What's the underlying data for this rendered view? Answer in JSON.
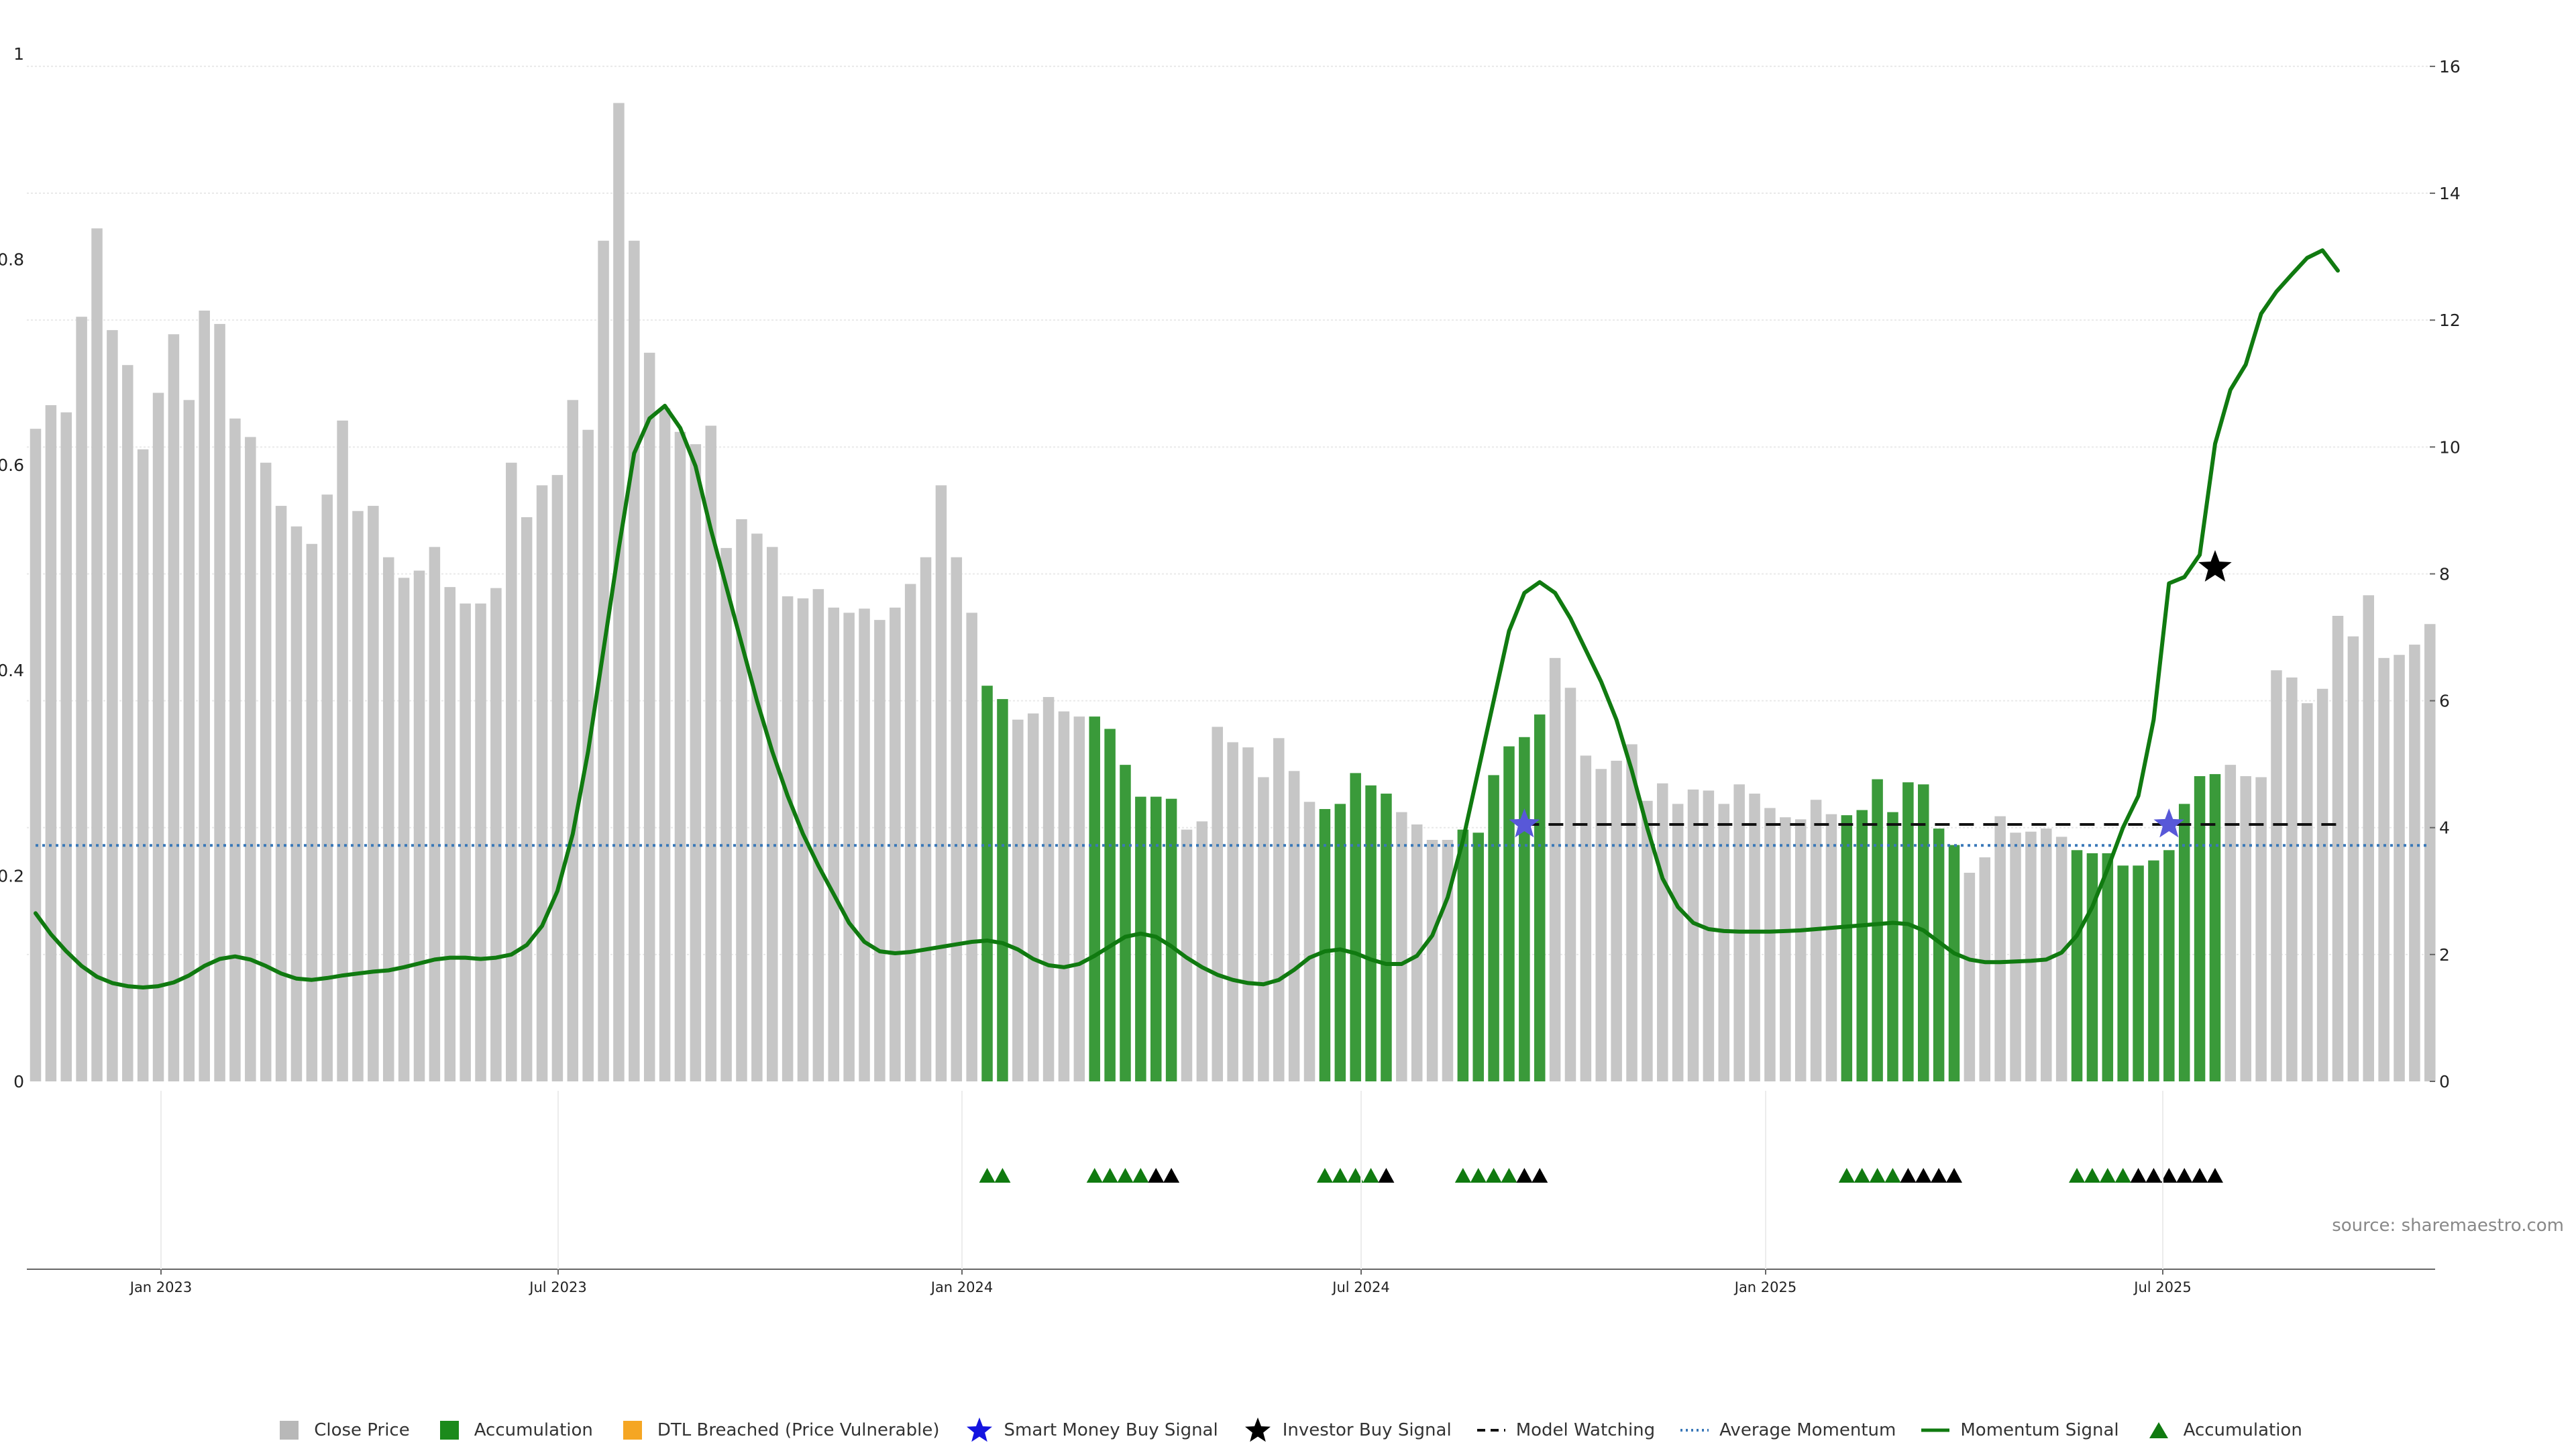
{
  "chart_data": {
    "type": "bar",
    "left_axis": {
      "ylim": [
        0,
        1
      ],
      "ticks": [
        "0",
        "0.2",
        "0.4",
        "0.6",
        "0.8",
        "1"
      ]
    },
    "right_axis": {
      "ylim": [
        0,
        16.2
      ],
      "ticks": [
        "0",
        "2",
        "4",
        "6",
        "8",
        "10",
        "12",
        "14",
        "16"
      ]
    },
    "x_axis": {
      "ticks": [
        "Jan 2023",
        "Jul 2023",
        "Jan 2024",
        "Jul 2024",
        "Jan 2025",
        "Jul 2025"
      ]
    },
    "price": [
      0.635,
      0.658,
      0.651,
      0.744,
      0.83,
      0.731,
      0.697,
      0.615,
      0.67,
      0.727,
      0.663,
      0.75,
      0.737,
      0.645,
      0.627,
      0.602,
      0.56,
      0.54,
      0.523,
      0.571,
      0.643,
      0.555,
      0.56,
      0.51,
      0.49,
      0.497,
      0.52,
      0.481,
      0.465,
      0.465,
      0.48,
      0.602,
      0.549,
      0.58,
      0.59,
      0.663,
      0.634,
      0.818,
      0.952,
      0.818,
      0.709,
      0.655,
      0.632,
      0.62,
      0.638,
      0.519,
      0.547,
      0.533,
      0.52,
      0.472,
      0.47,
      0.479,
      0.461,
      0.456,
      0.46,
      0.449,
      0.461,
      0.484,
      0.51,
      0.58,
      0.51,
      0.456,
      0.385,
      0.372,
      0.352,
      0.358,
      0.374,
      0.36,
      0.355,
      0.355,
      0.343,
      0.308,
      0.277,
      0.277,
      0.275,
      0.245,
      0.253,
      0.345,
      0.33,
      0.325,
      0.296,
      0.334,
      0.302,
      0.272,
      0.265,
      0.27,
      0.3,
      0.288,
      0.28,
      0.262,
      0.25,
      0.235,
      0.235,
      0.245,
      0.242,
      0.298,
      0.326,
      0.335,
      0.357,
      0.412,
      0.383,
      0.317,
      0.304,
      0.312,
      0.328,
      0.273,
      0.29,
      0.27,
      0.284,
      0.283,
      0.27,
      0.289,
      0.28,
      0.266,
      0.257,
      0.255,
      0.274,
      0.26,
      0.259,
      0.264,
      0.294,
      0.262,
      0.291,
      0.289,
      0.246,
      0.23,
      0.203,
      0.218,
      0.258,
      0.242,
      0.243,
      0.246,
      0.238,
      0.225,
      0.222,
      0.222,
      0.21,
      0.21,
      0.215,
      0.225,
      0.27,
      0.297,
      0.299,
      0.308,
      0.297,
      0.296,
      0.4,
      0.393,
      0.368,
      0.382,
      0.453,
      0.433,
      0.473,
      0.412,
      0.415,
      0.425,
      0.445
    ],
    "accumulation_bars": [
      62,
      63,
      69,
      70,
      71,
      72,
      73,
      74,
      84,
      85,
      86,
      87,
      88,
      93,
      94,
      95,
      96,
      97,
      98,
      118,
      119,
      120,
      121,
      122,
      123,
      124,
      125,
      133,
      134,
      135,
      136,
      137,
      138,
      139,
      140,
      141,
      142
    ],
    "momentum_signal": [
      [
        0,
        2.65
      ],
      [
        1,
        2.32
      ],
      [
        2,
        2.05
      ],
      [
        3,
        1.82
      ],
      [
        4,
        1.65
      ],
      [
        5,
        1.55
      ],
      [
        6,
        1.5
      ],
      [
        7,
        1.48
      ],
      [
        8,
        1.5
      ],
      [
        9,
        1.56
      ],
      [
        10,
        1.67
      ],
      [
        11,
        1.82
      ],
      [
        12,
        1.93
      ],
      [
        13,
        1.97
      ],
      [
        14,
        1.92
      ],
      [
        15,
        1.82
      ],
      [
        16,
        1.7
      ],
      [
        17,
        1.62
      ],
      [
        18,
        1.6
      ],
      [
        19,
        1.63
      ],
      [
        20,
        1.67
      ],
      [
        21,
        1.7
      ],
      [
        22,
        1.73
      ],
      [
        23,
        1.75
      ],
      [
        24,
        1.8
      ],
      [
        25,
        1.86
      ],
      [
        26,
        1.92
      ],
      [
        27,
        1.95
      ],
      [
        28,
        1.95
      ],
      [
        29,
        1.93
      ],
      [
        30,
        1.95
      ],
      [
        31,
        2.0
      ],
      [
        32,
        2.15
      ],
      [
        33,
        2.45
      ],
      [
        34,
        3.0
      ],
      [
        35,
        3.9
      ],
      [
        36,
        5.2
      ],
      [
        37,
        6.8
      ],
      [
        38,
        8.4
      ],
      [
        39,
        9.9
      ],
      [
        40,
        10.45
      ],
      [
        41,
        10.65
      ],
      [
        42,
        10.3
      ],
      [
        43,
        9.7
      ],
      [
        44,
        8.7
      ],
      [
        45,
        7.8
      ],
      [
        46,
        6.9
      ],
      [
        47,
        6.0
      ],
      [
        48,
        5.2
      ],
      [
        49,
        4.5
      ],
      [
        50,
        3.9
      ],
      [
        51,
        3.4
      ],
      [
        52,
        2.95
      ],
      [
        53,
        2.5
      ],
      [
        54,
        2.2
      ],
      [
        55,
        2.05
      ],
      [
        56,
        2.02
      ],
      [
        57,
        2.04
      ],
      [
        58,
        2.08
      ],
      [
        59,
        2.12
      ],
      [
        60,
        2.16
      ],
      [
        61,
        2.2
      ],
      [
        62,
        2.22
      ],
      [
        63,
        2.18
      ],
      [
        64,
        2.08
      ],
      [
        65,
        1.93
      ],
      [
        66,
        1.83
      ],
      [
        67,
        1.8
      ],
      [
        68,
        1.85
      ],
      [
        69,
        1.98
      ],
      [
        70,
        2.13
      ],
      [
        71,
        2.28
      ],
      [
        72,
        2.33
      ],
      [
        73,
        2.28
      ],
      [
        74,
        2.13
      ],
      [
        75,
        1.95
      ],
      [
        76,
        1.8
      ],
      [
        77,
        1.68
      ],
      [
        78,
        1.6
      ],
      [
        79,
        1.55
      ],
      [
        80,
        1.53
      ],
      [
        81,
        1.6
      ],
      [
        82,
        1.76
      ],
      [
        83,
        1.95
      ],
      [
        84,
        2.05
      ],
      [
        85,
        2.08
      ],
      [
        86,
        2.02
      ],
      [
        87,
        1.92
      ],
      [
        88,
        1.85
      ],
      [
        89,
        1.85
      ],
      [
        90,
        1.98
      ],
      [
        91,
        2.3
      ],
      [
        92,
        2.9
      ],
      [
        93,
        3.8
      ],
      [
        94,
        4.9
      ],
      [
        95,
        6.0
      ],
      [
        96,
        7.1
      ],
      [
        97,
        7.7
      ],
      [
        98,
        7.87
      ],
      [
        99,
        7.7
      ],
      [
        100,
        7.3
      ],
      [
        101,
        6.8
      ],
      [
        102,
        6.3
      ],
      [
        103,
        5.7
      ],
      [
        104,
        4.9
      ],
      [
        105,
        4.0
      ],
      [
        106,
        3.2
      ],
      [
        107,
        2.75
      ],
      [
        108,
        2.5
      ],
      [
        109,
        2.4
      ],
      [
        110,
        2.37
      ],
      [
        111,
        2.36
      ],
      [
        112,
        2.36
      ],
      [
        113,
        2.36
      ],
      [
        114,
        2.37
      ],
      [
        115,
        2.38
      ],
      [
        116,
        2.4
      ],
      [
        117,
        2.42
      ],
      [
        118,
        2.44
      ],
      [
        119,
        2.46
      ],
      [
        120,
        2.48
      ],
      [
        121,
        2.5
      ],
      [
        122,
        2.48
      ],
      [
        123,
        2.38
      ],
      [
        124,
        2.2
      ],
      [
        125,
        2.02
      ],
      [
        126,
        1.92
      ],
      [
        127,
        1.88
      ],
      [
        128,
        1.88
      ],
      [
        129,
        1.89
      ],
      [
        130,
        1.9
      ],
      [
        131,
        1.92
      ],
      [
        132,
        2.03
      ],
      [
        133,
        2.3
      ],
      [
        134,
        2.75
      ],
      [
        135,
        3.35
      ],
      [
        136,
        4.0
      ],
      [
        137,
        4.5
      ],
      [
        138,
        5.7
      ],
      [
        139,
        7.85
      ],
      [
        140,
        7.95
      ],
      [
        141,
        8.3
      ],
      [
        142,
        10.05
      ],
      [
        143,
        10.9
      ],
      [
        144,
        11.3
      ],
      [
        145,
        12.1
      ],
      [
        146,
        12.45
      ],
      [
        147,
        12.72
      ],
      [
        148,
        12.98
      ],
      [
        149,
        13.1
      ],
      [
        150,
        12.78
      ]
    ],
    "average_momentum": 3.72,
    "model_watching": {
      "from": 97,
      "to": 150,
      "value": 4.05
    },
    "smart_money_buy_signals": [
      [
        97,
        4.05
      ],
      [
        139,
        4.05
      ]
    ],
    "investor_buy_signals": [
      [
        142,
        8.1
      ]
    ],
    "accumulation_markers": [
      {
        "i": 62,
        "c": "green"
      },
      {
        "i": 63,
        "c": "green"
      },
      {
        "i": 69,
        "c": "green"
      },
      {
        "i": 70,
        "c": "green"
      },
      {
        "i": 71,
        "c": "green"
      },
      {
        "i": 72,
        "c": "green"
      },
      {
        "i": 73,
        "c": "black"
      },
      {
        "i": 74,
        "c": "black"
      },
      {
        "i": 84,
        "c": "green"
      },
      {
        "i": 85,
        "c": "green"
      },
      {
        "i": 86,
        "c": "green"
      },
      {
        "i": 87,
        "c": "green"
      },
      {
        "i": 88,
        "c": "black"
      },
      {
        "i": 93,
        "c": "green"
      },
      {
        "i": 94,
        "c": "green"
      },
      {
        "i": 95,
        "c": "green"
      },
      {
        "i": 96,
        "c": "green"
      },
      {
        "i": 97,
        "c": "black"
      },
      {
        "i": 98,
        "c": "black"
      },
      {
        "i": 118,
        "c": "green"
      },
      {
        "i": 119,
        "c": "green"
      },
      {
        "i": 120,
        "c": "green"
      },
      {
        "i": 121,
        "c": "green"
      },
      {
        "i": 122,
        "c": "black"
      },
      {
        "i": 123,
        "c": "black"
      },
      {
        "i": 124,
        "c": "black"
      },
      {
        "i": 125,
        "c": "black"
      },
      {
        "i": 133,
        "c": "green"
      },
      {
        "i": 134,
        "c": "green"
      },
      {
        "i": 135,
        "c": "green"
      },
      {
        "i": 136,
        "c": "green"
      },
      {
        "i": 137,
        "c": "black"
      },
      {
        "i": 138,
        "c": "black"
      },
      {
        "i": 139,
        "c": "black"
      },
      {
        "i": 140,
        "c": "black"
      },
      {
        "i": 141,
        "c": "black"
      },
      {
        "i": 142,
        "c": "black"
      }
    ],
    "source": "source: sharemaestro.com"
  },
  "colors": {
    "close_price": "#c6c6c6",
    "accumulation": "#3a9a3a",
    "accumulation_legend": "#1b8a1b",
    "dtl_breached": "#f5a623",
    "smart_money": "#1515e0",
    "smart_money_plot": "#5858d8",
    "investor": "#000000",
    "momentum": "#107a10",
    "average_momentum": "#3a78b8",
    "model_watching": "#111111",
    "marker_green": "#107a10",
    "marker_black": "#000000"
  },
  "legend": [
    {
      "key": "close",
      "label": "Close Price",
      "sym": "square",
      "color": "#b8b8b8"
    },
    {
      "key": "acc",
      "label": "Accumulation",
      "sym": "square",
      "color": "#1b8a1b"
    },
    {
      "key": "dtl",
      "label": "DTL Breached (Price Vulnerable)",
      "sym": "square",
      "color": "#f5a623"
    },
    {
      "key": "smart",
      "label": "Smart Money Buy Signal",
      "sym": "star",
      "color": "#1515e0"
    },
    {
      "key": "investor",
      "label": "Investor Buy Signal",
      "sym": "star",
      "color": "#000000"
    },
    {
      "key": "watch",
      "label": "Model Watching",
      "sym": "dash",
      "color": "#111111"
    },
    {
      "key": "avg",
      "label": "Average Momentum",
      "sym": "dot",
      "color": "#3a78b8"
    },
    {
      "key": "mom",
      "label": "Momentum Signal",
      "sym": "line",
      "color": "#107a10"
    },
    {
      "key": "acc2",
      "label": "Accumulation",
      "sym": "triangle",
      "color": "#107a10"
    }
  ]
}
